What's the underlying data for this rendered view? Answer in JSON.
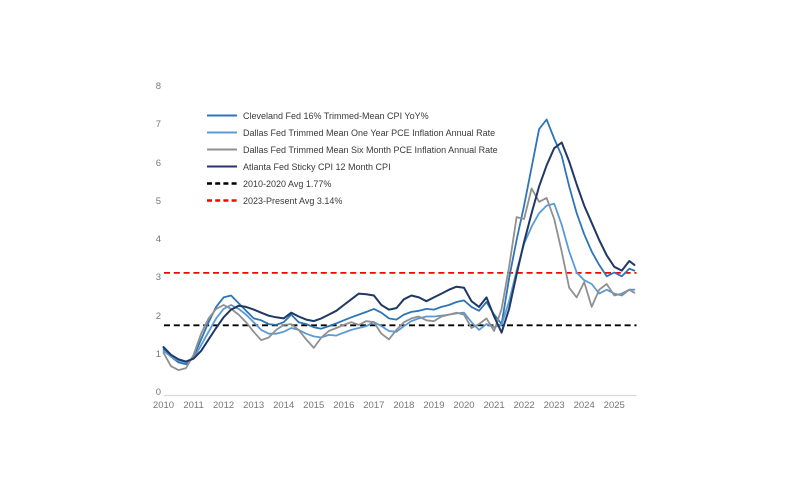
{
  "chart_data": {
    "type": "line",
    "title": "",
    "xlabel": "",
    "ylabel": "",
    "grid": false,
    "background": "#ffffff",
    "axis_line_color": "#d9d9d9",
    "axis_label_color": "#767676",
    "legend_position": "upper-left-inside",
    "ylim": [
      0,
      8
    ],
    "xlim": [
      2010,
      2025.7
    ],
    "yticks": [
      0,
      1,
      2,
      3,
      4,
      5,
      6,
      7,
      8
    ],
    "xticks": [
      2010,
      2011,
      2012,
      2013,
      2014,
      2015,
      2016,
      2017,
      2018,
      2019,
      2020,
      2021,
      2022,
      2023,
      2024,
      2025
    ],
    "x": [
      2010.0,
      2010.25,
      2010.5,
      2010.75,
      2011.0,
      2011.25,
      2011.5,
      2011.75,
      2012.0,
      2012.25,
      2012.5,
      2012.75,
      2013.0,
      2013.25,
      2013.5,
      2013.75,
      2014.0,
      2014.25,
      2014.5,
      2014.75,
      2015.0,
      2015.25,
      2015.5,
      2015.75,
      2016.0,
      2016.25,
      2016.5,
      2016.75,
      2017.0,
      2017.25,
      2017.5,
      2017.75,
      2018.0,
      2018.25,
      2018.5,
      2018.75,
      2019.0,
      2019.25,
      2019.5,
      2019.75,
      2020.0,
      2020.25,
      2020.5,
      2020.75,
      2021.0,
      2021.25,
      2021.5,
      2021.75,
      2022.0,
      2022.25,
      2022.5,
      2022.75,
      2023.0,
      2023.25,
      2023.5,
      2023.75,
      2024.0,
      2024.25,
      2024.5,
      2024.75,
      2025.0,
      2025.25,
      2025.5,
      2025.67
    ],
    "series": [
      {
        "name": "Cleveland Fed 16% Trimmed-Mean CPI YoY%",
        "color": "#2e75b6",
        "width": 1.8,
        "values": [
          1.15,
          0.95,
          0.8,
          0.75,
          0.95,
          1.4,
          1.85,
          2.25,
          2.5,
          2.55,
          2.35,
          2.15,
          1.95,
          1.9,
          1.8,
          1.78,
          1.85,
          2.05,
          1.85,
          1.8,
          1.72,
          1.68,
          1.75,
          1.82,
          1.9,
          1.98,
          2.05,
          2.12,
          2.2,
          2.1,
          1.95,
          1.92,
          2.05,
          2.12,
          2.15,
          2.2,
          2.18,
          2.25,
          2.3,
          2.38,
          2.42,
          2.25,
          2.15,
          2.38,
          2.05,
          1.8,
          3.0,
          4.0,
          4.9,
          5.9,
          6.9,
          7.15,
          6.65,
          6.2,
          5.4,
          4.7,
          4.15,
          3.7,
          3.35,
          3.05,
          3.15,
          3.05,
          3.25,
          3.2
        ]
      },
      {
        "name": "Dallas Fed Trimmed Mean One Year PCE Inflation Annual Rate",
        "color": "#5b9bd5",
        "width": 1.8,
        "values": [
          1.1,
          0.95,
          0.85,
          0.8,
          0.9,
          1.25,
          1.6,
          1.95,
          2.2,
          2.3,
          2.2,
          2.05,
          1.85,
          1.65,
          1.55,
          1.55,
          1.6,
          1.7,
          1.65,
          1.55,
          1.48,
          1.45,
          1.52,
          1.5,
          1.58,
          1.65,
          1.7,
          1.75,
          1.85,
          1.75,
          1.62,
          1.6,
          1.75,
          1.88,
          1.95,
          2.0,
          2.0,
          2.02,
          2.05,
          2.08,
          2.1,
          1.85,
          1.65,
          1.8,
          1.72,
          1.78,
          2.4,
          3.2,
          3.9,
          4.35,
          4.7,
          4.9,
          4.95,
          4.4,
          3.7,
          3.15,
          2.95,
          2.85,
          2.6,
          2.7,
          2.6,
          2.55,
          2.7,
          2.7
        ]
      },
      {
        "name": "Dallas Fed Trimmed Mean Six Month PCE Inflation Annual Rate",
        "color": "#909090",
        "width": 1.8,
        "values": [
          1.05,
          0.7,
          0.6,
          0.65,
          1.0,
          1.55,
          1.95,
          2.2,
          2.3,
          2.2,
          2.05,
          1.85,
          1.6,
          1.38,
          1.45,
          1.65,
          1.78,
          1.8,
          1.65,
          1.4,
          1.18,
          1.45,
          1.62,
          1.7,
          1.78,
          1.85,
          1.78,
          1.88,
          1.85,
          1.55,
          1.4,
          1.65,
          1.85,
          1.95,
          2.0,
          1.9,
          1.88,
          2.0,
          2.05,
          2.1,
          2.05,
          1.7,
          1.8,
          1.95,
          1.62,
          2.2,
          3.3,
          4.6,
          4.55,
          5.35,
          5.0,
          5.1,
          4.55,
          3.7,
          2.75,
          2.5,
          2.9,
          2.25,
          2.7,
          2.85,
          2.55,
          2.6,
          2.7,
          2.62
        ]
      },
      {
        "name": "Atlanta Fed Sticky CPI 12 Month CPI",
        "color": "#1f3864",
        "width": 2,
        "values": [
          1.2,
          1.0,
          0.88,
          0.82,
          0.9,
          1.1,
          1.4,
          1.7,
          1.98,
          2.18,
          2.28,
          2.25,
          2.18,
          2.1,
          2.02,
          1.98,
          1.95,
          2.1,
          2.0,
          1.92,
          1.88,
          1.95,
          2.05,
          2.15,
          2.3,
          2.45,
          2.6,
          2.58,
          2.55,
          2.3,
          2.18,
          2.22,
          2.45,
          2.55,
          2.5,
          2.4,
          2.5,
          2.6,
          2.7,
          2.78,
          2.75,
          2.4,
          2.25,
          2.5,
          2.0,
          1.58,
          2.2,
          3.1,
          3.95,
          4.7,
          5.4,
          5.95,
          6.4,
          6.55,
          6.05,
          5.45,
          4.9,
          4.45,
          4.0,
          3.6,
          3.3,
          3.2,
          3.45,
          3.35
        ]
      }
    ],
    "reference_lines": [
      {
        "label": "2010-2020 Avg 1.77%",
        "value": 1.77,
        "color": "#000000",
        "style": "dashed"
      },
      {
        "label": "2023-Present Avg 3.14%",
        "value": 3.14,
        "color": "#ff0000",
        "style": "dashed"
      }
    ]
  }
}
